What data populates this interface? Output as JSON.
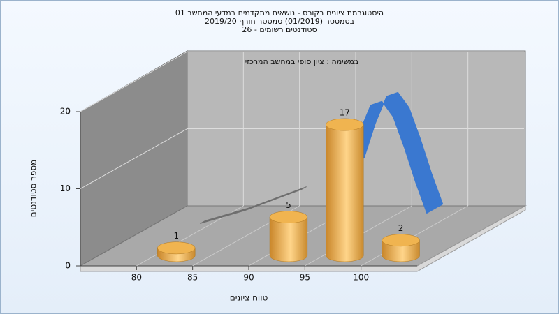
{
  "chart_data": {
    "type": "histogram",
    "title": [
      "היסטוגרמת ציונים בקורס - נושאים מתקדמים במדעי המחשב 01",
      "בסמסטר  (01/2019)  סמסטר חורף 2019/20",
      "סטודנטים רשומים - 26"
    ],
    "subtitle": "במשימה : ציון סופי במחשב המרכזי",
    "xlabel": "טווח ציונים",
    "ylabel": "מספר סטודנטים",
    "bins": [
      80,
      85,
      90,
      95,
      100,
      105
    ],
    "values": [
      1,
      0,
      5,
      17,
      2
    ],
    "color": "#e8a640",
    "xlim": [
      75,
      105
    ],
    "xticks": [
      80,
      85,
      90,
      95,
      100
    ],
    "ylim": [
      0,
      20
    ],
    "yticks": [
      0,
      10,
      20
    ],
    "grid": true,
    "overlays": [
      {
        "color": "#3a78d0",
        "x": [
          96,
          97,
          98,
          99,
          100,
          101,
          102,
          103
        ],
        "values": [
          10.5,
          15,
          18.5,
          19,
          17,
          13,
          8.5,
          4.5
        ]
      },
      {
        "color": "#6e6e6e",
        "x": [
          83,
          87,
          92
        ],
        "values": [
          3.3,
          5,
          7.7
        ]
      }
    ]
  }
}
